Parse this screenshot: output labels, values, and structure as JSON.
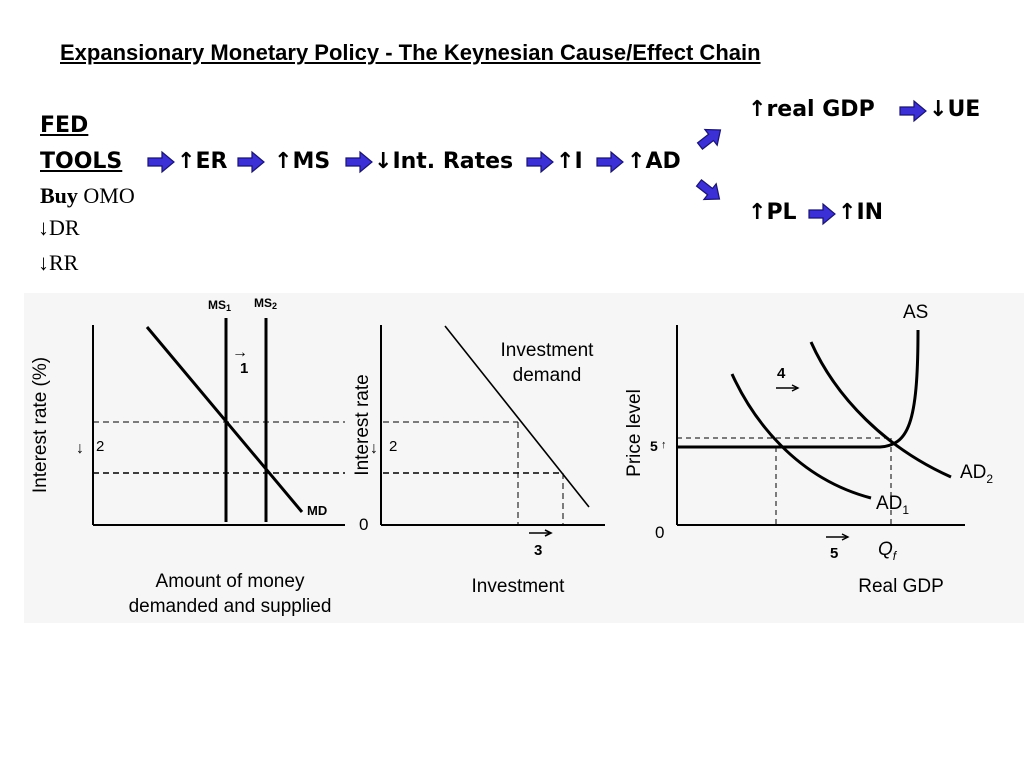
{
  "title": "Expansionary Monetary Policy - The Keynesian Cause/Effect Chain",
  "tools": {
    "fed": "FED",
    "tools": "TOOLS",
    "buy": "Buy",
    "omo": "OMO",
    "dr": "DR",
    "rr": "RR",
    "down_arrow": "↓"
  },
  "chain": {
    "up": "↑",
    "down": "↓",
    "er": "ER",
    "ms": "MS",
    "int_rates": "Int. Rates",
    "i": "I",
    "ad": "AD",
    "real_gdp": "real GDP",
    "ue": "UE",
    "pl": "PL",
    "in": "IN"
  },
  "graph1": {
    "ylabel": "Interest rate (%)",
    "xlabel_line1": "Amount of money",
    "xlabel_line2": "demanded and supplied",
    "ms1": "MS",
    "ms1_sub": "1",
    "ms2": "MS",
    "ms2_sub": "2",
    "md": "MD",
    "step1": "1",
    "step2": "2",
    "shift_arrow": "→",
    "down_arrow": "↓"
  },
  "graph2": {
    "ylabel": "Interest rate",
    "xlabel": "Investment",
    "curve_label_line1": "Investment",
    "curve_label_line2": "demand",
    "zero": "0",
    "step2": "2",
    "step3": "3",
    "down_arrow": "↓"
  },
  "graph3": {
    "ylabel": "Price level",
    "xlabel": "Real GDP",
    "as": "AS",
    "ad1": "AD",
    "ad1_sub": "1",
    "ad2": "AD",
    "ad2_sub": "2",
    "zero": "0",
    "step4": "4",
    "step5": "5",
    "price_step": "5",
    "qf": "Q",
    "qf_sub": "f",
    "up_arrow": "↑"
  },
  "colors": {
    "arrow_fill": "#3b2fd6",
    "arrow_stroke": "#1a1470"
  }
}
